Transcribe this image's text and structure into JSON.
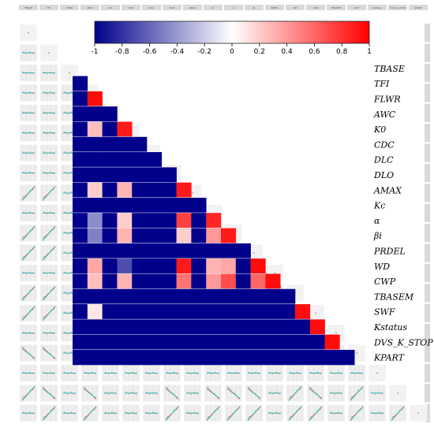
{
  "chart_data": [
    {
      "type": "heatmap",
      "title": "",
      "colorscale": {
        "low_color": "#00008b",
        "mid_color": "#ffffff",
        "high_color": "#ff0000",
        "range": [
          -1,
          1
        ],
        "ticks": [
          "-1",
          "-0.8",
          "-0.6",
          "-0.4",
          "-0.2",
          "0",
          "0.2",
          "0.4",
          "0.6",
          "0.8",
          "1"
        ],
        "tick_values": [
          -1,
          -0.8,
          -0.6,
          -0.4,
          -0.2,
          0,
          0.2,
          0.4,
          0.6,
          0.8,
          1
        ],
        "placement": "top"
      },
      "variables": [
        "TBASE",
        "TFI",
        "FLWR",
        "AWC",
        "K0",
        "CDC",
        "DLC",
        "DLO",
        "AMAX",
        "Kc",
        "α",
        "βi",
        "PRDEL",
        "WD",
        "CWP",
        "TBASEM",
        "SWF",
        "Kstatus",
        "DVS_K_STOP",
        "KPART"
      ],
      "rows": [
        {
          "label": "TBASE",
          "cells": []
        },
        {
          "label": "TFI",
          "cells": [
            -1
          ]
        },
        {
          "label": "FLWR",
          "cells": [
            -1,
            0.95
          ]
        },
        {
          "label": "AWC",
          "cells": [
            -1,
            -1,
            -1
          ]
        },
        {
          "label": "K0",
          "cells": [
            -1,
            0.25,
            -1,
            0.9
          ]
        },
        {
          "label": "CDC",
          "cells": [
            -1,
            -1,
            -1,
            -1,
            -1
          ]
        },
        {
          "label": "DLC",
          "cells": [
            -1,
            -1,
            -1,
            -1,
            -1,
            -1
          ]
        },
        {
          "label": "DLO",
          "cells": [
            -1,
            -1,
            -1,
            -1,
            -1,
            -1,
            -1
          ]
        },
        {
          "label": "AMAX",
          "cells": [
            -1,
            0.2,
            -1,
            0.3,
            -1,
            -1,
            -1,
            0.9
          ]
        },
        {
          "label": "Kc",
          "cells": [
            -1,
            -1,
            -1,
            -1,
            -1,
            -1,
            -1,
            -1,
            -1
          ]
        },
        {
          "label": "α",
          "cells": [
            -1,
            -0.45,
            -1,
            0.2,
            -1,
            -1,
            -1,
            0.75,
            -1,
            0.85
          ]
        },
        {
          "label": "βi",
          "cells": [
            -1,
            -0.5,
            -1,
            0.3,
            -1,
            -1,
            -1,
            0.2,
            -1,
            0.4,
            0.9
          ]
        },
        {
          "label": "PRDEL",
          "cells": [
            -1,
            -1,
            -1,
            -1,
            -1,
            -1,
            -1,
            -1,
            -1,
            -1,
            -1,
            -1
          ]
        },
        {
          "label": "WD",
          "cells": [
            -1,
            0.35,
            -1,
            -0.7,
            -1,
            -1,
            -1,
            0.9,
            -1,
            0.3,
            0.35,
            -1,
            0.95
          ]
        },
        {
          "label": "CWP",
          "cells": [
            -1,
            0.25,
            -1,
            0.3,
            -1,
            -1,
            -1,
            0.55,
            -1,
            0.4,
            0.7,
            -1,
            0.6,
            0.95
          ]
        },
        {
          "label": "TBASEM",
          "cells": [
            -1,
            -1,
            -1,
            -1,
            -1,
            -1,
            -1,
            -1,
            -1,
            -1,
            -1,
            -1,
            -1,
            -1,
            -1
          ]
        },
        {
          "label": "SWF",
          "cells": [
            -1,
            0.1,
            -1,
            -1,
            -1,
            -1,
            -1,
            -1,
            -1,
            -1,
            -1,
            -1,
            -1,
            -1,
            -1,
            0.95
          ]
        },
        {
          "label": "Kstatus",
          "cells": [
            -1,
            -1,
            -1,
            -1,
            -1,
            -1,
            -1,
            -1,
            -1,
            -1,
            -1,
            -1,
            -1,
            -1,
            -1,
            -1,
            0.95
          ]
        },
        {
          "label": "DVS_K_STOP",
          "cells": [
            -1,
            -1,
            -1,
            -1,
            -1,
            -1,
            -1,
            -1,
            -1,
            -1,
            -1,
            -1,
            -1,
            -1,
            -1,
            -1,
            -1,
            0.95
          ]
        },
        {
          "label": "KPART",
          "cells": [
            -1,
            -1,
            -1,
            -1,
            -1,
            -1,
            -1,
            -1,
            -1,
            -1,
            -1,
            -1,
            -1,
            -1,
            -1,
            -1,
            -1,
            -1,
            -1
          ]
        }
      ]
    },
    {
      "type": "scatter",
      "layout": "pairs-matrix",
      "variables": [
        "TBASE",
        "TFI",
        "FLWR",
        "AWC",
        "K0",
        "CDC",
        "DLC",
        "DLO",
        "AMAX",
        "Kc",
        "α",
        "βi",
        "PRDEL",
        "WD",
        "CWP",
        "TBASEM",
        "SWF",
        "Kstatus",
        "DVS_K_STOP",
        "KPART"
      ],
      "panel_trends": [
        [],
        [
          0
        ],
        [
          0,
          0
        ],
        [
          0,
          0,
          0
        ],
        [
          0,
          0,
          0,
          0
        ],
        [
          0,
          0,
          0,
          0,
          0
        ],
        [
          0,
          0,
          0,
          0,
          0,
          0
        ],
        [
          0,
          0,
          0,
          0,
          0,
          0,
          0
        ],
        [
          1,
          1,
          0,
          1,
          0,
          0,
          0,
          0
        ],
        [
          0,
          0,
          0,
          0,
          0,
          0,
          0,
          0,
          0
        ],
        [
          1,
          1,
          0,
          1,
          0,
          0,
          0,
          1,
          0,
          0
        ],
        [
          1,
          1,
          0,
          1,
          0,
          0,
          0,
          1,
          0,
          1,
          1
        ],
        [
          0,
          0,
          0,
          0,
          0,
          0,
          0,
          0,
          0,
          0,
          0,
          0
        ],
        [
          1,
          1,
          0,
          1,
          0,
          0,
          0,
          1,
          0,
          1,
          1,
          1,
          1
        ],
        [
          1,
          1,
          0,
          1,
          0,
          0,
          0,
          1,
          0,
          1,
          1,
          1,
          1,
          1
        ],
        [
          0,
          0,
          0,
          0,
          0,
          0,
          0,
          0,
          0,
          0,
          0,
          0,
          0,
          0,
          0
        ],
        [
          -1,
          -1,
          0,
          -1,
          0,
          0,
          0,
          1,
          0,
          1,
          1,
          1,
          0,
          1,
          1,
          0
        ],
        [
          0,
          0,
          0,
          0,
          0,
          0,
          0,
          0,
          0,
          0,
          0,
          0,
          0,
          0,
          0,
          0,
          0
        ],
        [
          1,
          -1,
          0,
          -1,
          0,
          0,
          0,
          -1,
          0,
          -1,
          -1,
          -1,
          0,
          1,
          -1,
          0,
          1,
          0
        ],
        [
          0,
          1,
          0,
          1,
          0,
          0,
          0,
          1,
          0,
          1,
          1,
          1,
          0,
          1,
          1,
          0,
          1,
          0,
          1
        ]
      ],
      "series_colors": {
        "group_a": "#f27c72",
        "group_b": "#22b8b8"
      },
      "panel_background": "#ebebeb"
    }
  ]
}
